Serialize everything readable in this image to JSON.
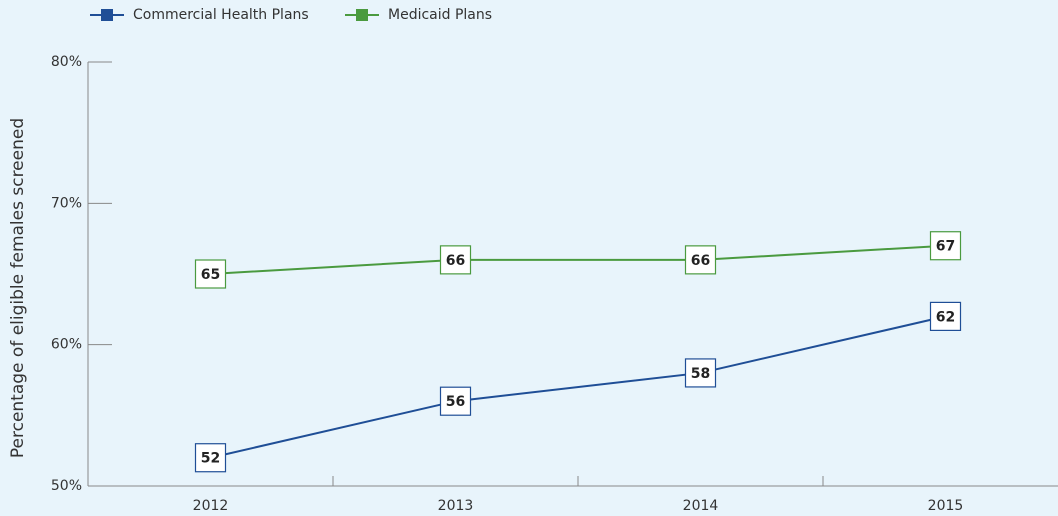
{
  "chart_data": {
    "type": "line",
    "y_label": "Percentage of eligible females screened",
    "categories": [
      "2012",
      "2013",
      "2014",
      "2015"
    ],
    "series": [
      {
        "name": "Commercial Health Plans",
        "color": "#1f4e96",
        "values": [
          52,
          56,
          58,
          62
        ]
      },
      {
        "name": "Medicaid Plans",
        "color": "#4a9a3f",
        "values": [
          65,
          66,
          66,
          67
        ]
      }
    ],
    "ylim": [
      50,
      80
    ],
    "yticks": [
      {
        "value": 50,
        "label": "50%"
      },
      {
        "value": 60,
        "label": "60%"
      },
      {
        "value": 70,
        "label": "70%"
      },
      {
        "value": 80,
        "label": "80%"
      }
    ],
    "legend": "top-left"
  }
}
